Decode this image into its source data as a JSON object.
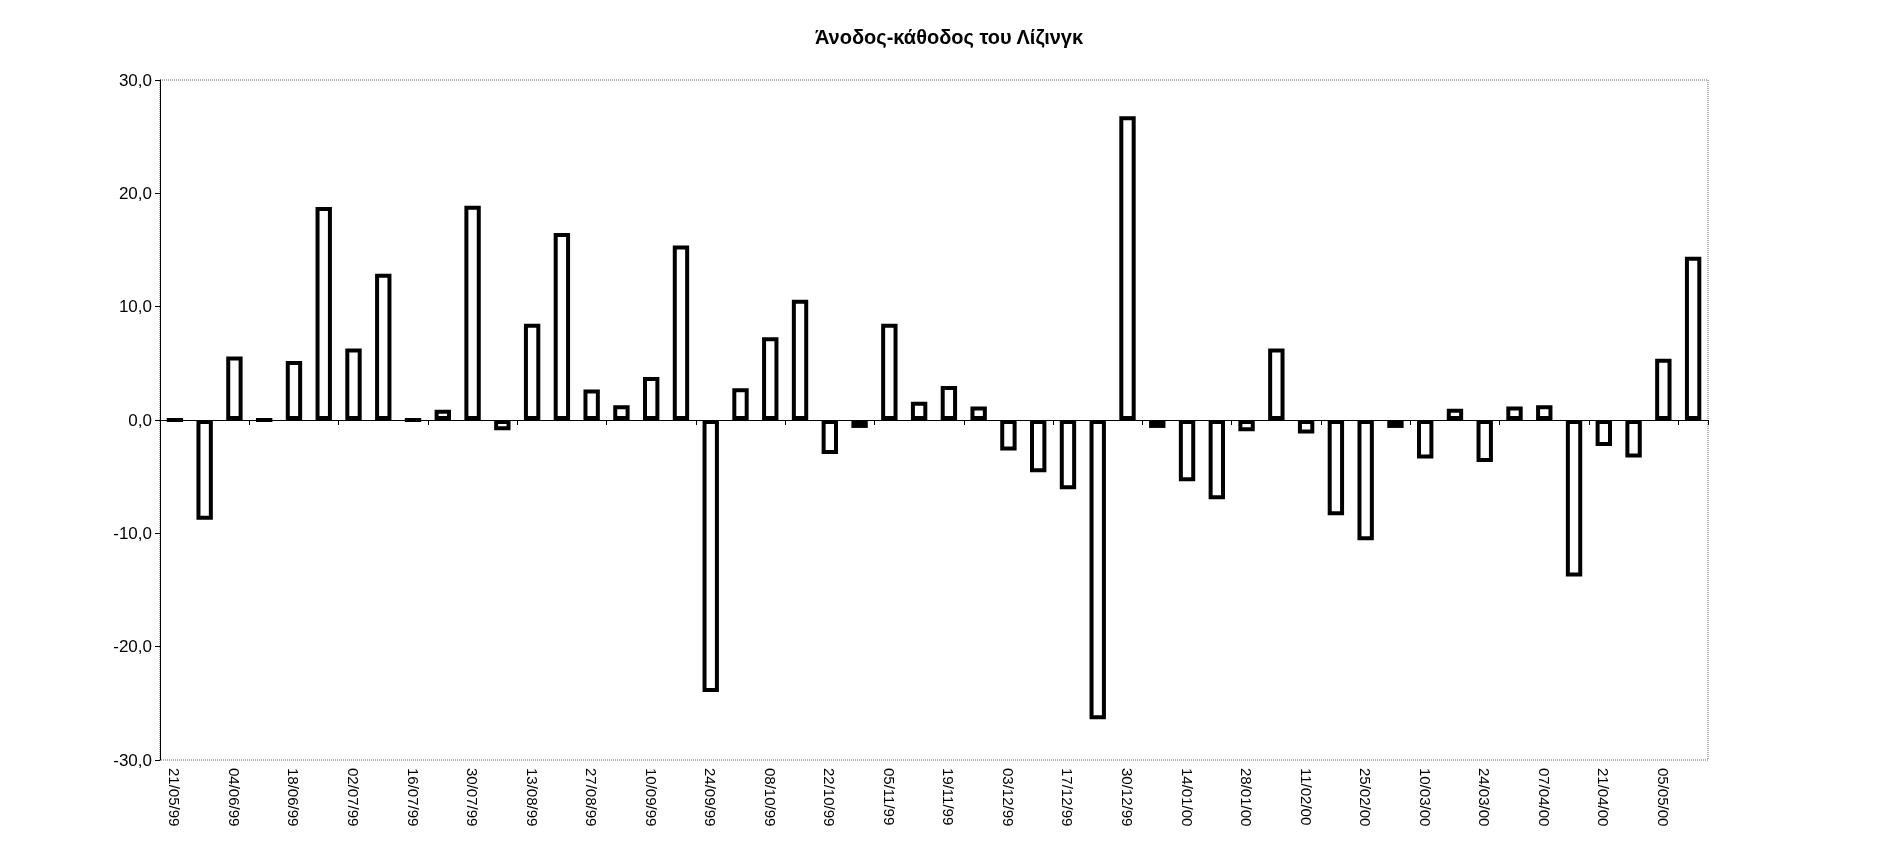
{
  "chart_data": {
    "type": "bar",
    "title": "Άνοδος-κάθοδος του Λίζινγκ",
    "categories": [
      "21/05/99",
      null,
      "04/06/99",
      null,
      "18/06/99",
      null,
      "02/07/99",
      null,
      "16/07/99",
      null,
      "30/07/99",
      null,
      "13/08/99",
      null,
      "27/08/99",
      null,
      "10/09/99",
      null,
      "24/09/99",
      null,
      "08/10/99",
      null,
      "22/10/99",
      null,
      "05/11/99",
      null,
      "19/11/99",
      null,
      "03/12/99",
      null,
      "17/12/99",
      null,
      "30/12/99",
      null,
      "14/01/00",
      null,
      "28/01/00",
      null,
      "11/02/00",
      null,
      "25/02/00",
      null,
      "10/03/00",
      null,
      "24/03/00",
      null,
      "07/04/00",
      null,
      "21/04/00",
      null,
      "05/05/00",
      null
    ],
    "values": [
      0,
      -8.8,
      5.6,
      0,
      5.2,
      18.8,
      6.3,
      12.9,
      0,
      0.9,
      18.9,
      -0.9,
      8.5,
      16.5,
      2.7,
      1.3,
      3.8,
      15.4,
      -24.0,
      2.8,
      7.3,
      10.6,
      -3.0,
      -0.7,
      8.5,
      1.6,
      3.0,
      1.2,
      -2.7,
      -4.6,
      -6.1,
      -26.4,
      26.8,
      -0.7,
      -5.4,
      -7.0,
      -1.0,
      6.3,
      -1.2,
      -8.4,
      -10.6,
      -0.7,
      -3.4,
      1.0,
      -3.7,
      1.2,
      1.3,
      -13.8,
      -2.3,
      -3.3,
      5.4,
      14.4
    ],
    "color": "#000000",
    "ylim": [
      -30,
      30
    ],
    "yticks": [
      {
        "value": -30,
        "label": "-30,0"
      },
      {
        "value": -20,
        "label": "-20,0"
      },
      {
        "value": -10,
        "label": "-10,0"
      },
      {
        "value": 0,
        "label": "0,0"
      },
      {
        "value": 10,
        "label": "10,0"
      },
      {
        "value": 20,
        "label": "20,0"
      },
      {
        "value": 30,
        "label": "30,0"
      }
    ],
    "tick_labels": true
  }
}
